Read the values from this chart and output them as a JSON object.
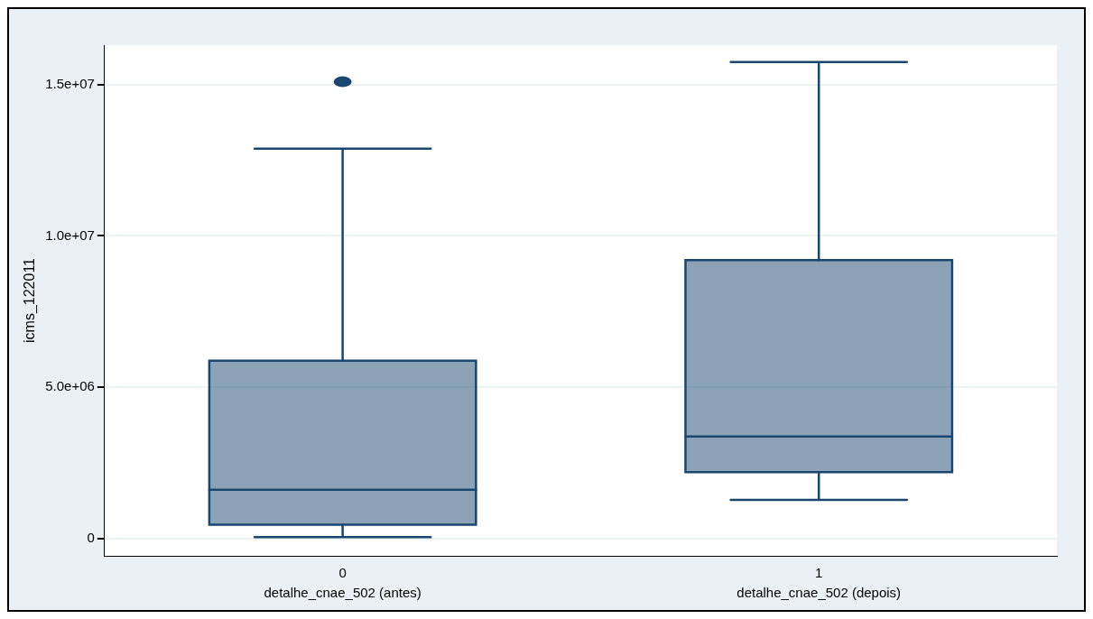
{
  "chart_data": {
    "type": "box",
    "ylabel": "icms_122011",
    "categories": [
      "0",
      "1"
    ],
    "annotations": [
      "detalhe_cnae_502 (antes)",
      "detalhe_cnae_502 (depois)"
    ],
    "ylim": [
      -560000,
      16300000
    ],
    "yticks": [
      {
        "value": 0,
        "label": "0"
      },
      {
        "value": 5000000,
        "label": "5.0e+06"
      },
      {
        "value": 10000000,
        "label": "1.0e+07"
      },
      {
        "value": 15000000,
        "label": "1.5e+07"
      }
    ],
    "grid": "y",
    "series": [
      {
        "color": "#1a476f",
        "boxes": [
          {
            "low": 60000,
            "q1": 470000,
            "median": 1620000,
            "q3": 5880000,
            "high": 12880000,
            "outliers": [
              15090000
            ]
          },
          {
            "low": 1290000,
            "q1": 2200000,
            "median": 3380000,
            "q3": 9200000,
            "high": 15740000
          }
        ]
      }
    ]
  }
}
